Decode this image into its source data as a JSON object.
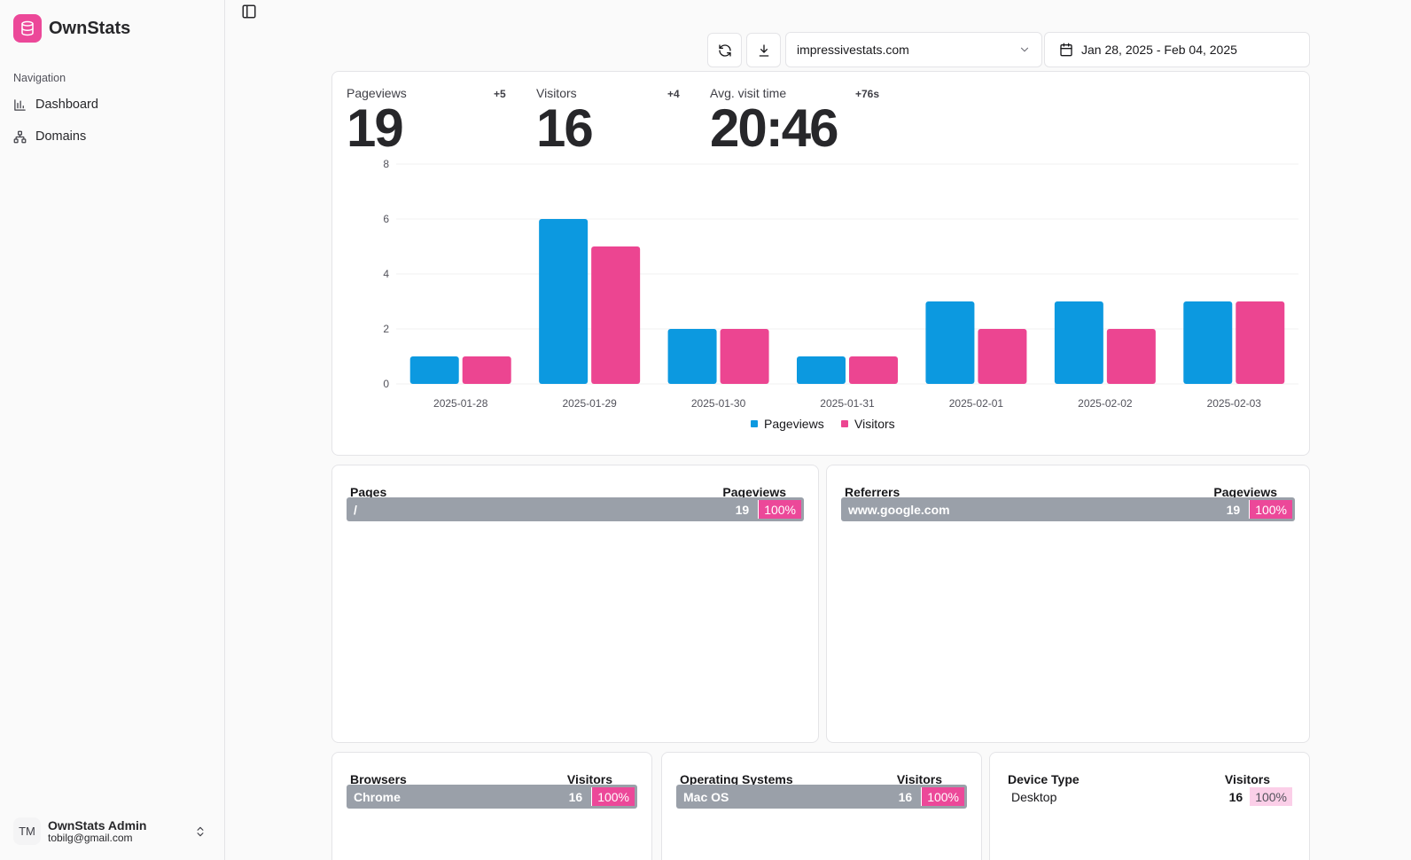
{
  "app": {
    "name": "OwnStats"
  },
  "sidebar": {
    "heading": "Navigation",
    "items": [
      {
        "label": "Dashboard",
        "icon": "bar-chart-icon"
      },
      {
        "label": "Domains",
        "icon": "sitemap-icon"
      }
    ],
    "user": {
      "initials": "TM",
      "name": "OwnStats Admin",
      "email": "tobilg@gmail.com"
    }
  },
  "toolbar": {
    "domain": "impressivestats.com",
    "date_range": "Jan 28, 2025 - Feb 04, 2025"
  },
  "stats": [
    {
      "label": "Pageviews",
      "value": "19",
      "delta": "+5"
    },
    {
      "label": "Visitors",
      "value": "16",
      "delta": "+4"
    },
    {
      "label": "Avg. visit time",
      "value": "20:46",
      "delta": "+76s"
    }
  ],
  "colors": {
    "pageviews": "#0c99e0",
    "visitors": "#ec4591",
    "accent": "#ec4899"
  },
  "chart_data": {
    "type": "bar",
    "categories": [
      "2025-01-28",
      "2025-01-29",
      "2025-01-30",
      "2025-01-31",
      "2025-02-01",
      "2025-02-02",
      "2025-02-03"
    ],
    "series": [
      {
        "name": "Pageviews",
        "values": [
          1,
          6,
          2,
          1,
          3,
          3,
          3
        ]
      },
      {
        "name": "Visitors",
        "values": [
          1,
          5,
          2,
          1,
          2,
          2,
          3
        ]
      }
    ],
    "yticks": [
      "0",
      "2",
      "4",
      "6",
      "8"
    ],
    "ylim": [
      0,
      8
    ],
    "legend": "bottom-center"
  },
  "tables": {
    "pages": {
      "title": "Pages",
      "metric": "Pageviews",
      "rows": [
        {
          "label": "/",
          "count": "19",
          "pct": "100%"
        }
      ]
    },
    "referrers": {
      "title": "Referrers",
      "metric": "Pageviews",
      "rows": [
        {
          "label": "www.google.com",
          "count": "19",
          "pct": "100%"
        }
      ]
    },
    "browsers": {
      "title": "Browsers",
      "metric": "Visitors",
      "rows": [
        {
          "label": "Chrome",
          "count": "16",
          "pct": "100%"
        }
      ]
    },
    "os": {
      "title": "Operating Systems",
      "metric": "Visitors",
      "rows": [
        {
          "label": "Mac OS",
          "count": "16",
          "pct": "100%"
        }
      ]
    },
    "devices": {
      "title": "Device Type",
      "metric": "Visitors",
      "rows": [
        {
          "label": "Desktop",
          "count": "16",
          "pct": "100%"
        }
      ]
    }
  }
}
